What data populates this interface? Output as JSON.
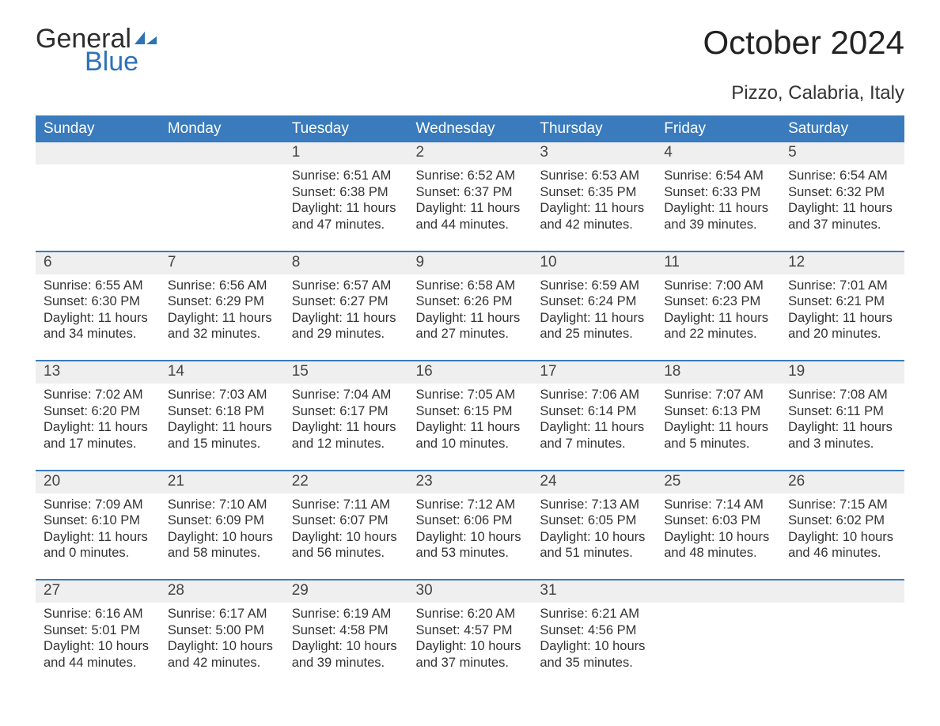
{
  "logo": {
    "text_general": "General",
    "text_blue": "Blue",
    "icon_color": "#2d73b6"
  },
  "title": "October 2024",
  "location": "Pizzo, Calabria, Italy",
  "colors": {
    "header_bg": "#397bbd",
    "header_text": "#ffffff",
    "daynum_bg": "#efefef",
    "border": "#397bbd",
    "body_text": "#333333"
  },
  "fonts": {
    "title_size": 42,
    "location_size": 24,
    "header_size": 19,
    "daynum_size": 19,
    "data_size": 16.5
  },
  "day_names": [
    "Sunday",
    "Monday",
    "Tuesday",
    "Wednesday",
    "Thursday",
    "Friday",
    "Saturday"
  ],
  "weeks": [
    [
      {
        "num": "",
        "sunrise": "",
        "sunset": "",
        "daylight": ""
      },
      {
        "num": "",
        "sunrise": "",
        "sunset": "",
        "daylight": ""
      },
      {
        "num": "1",
        "sunrise": "Sunrise: 6:51 AM",
        "sunset": "Sunset: 6:38 PM",
        "daylight": "Daylight: 11 hours and 47 minutes."
      },
      {
        "num": "2",
        "sunrise": "Sunrise: 6:52 AM",
        "sunset": "Sunset: 6:37 PM",
        "daylight": "Daylight: 11 hours and 44 minutes."
      },
      {
        "num": "3",
        "sunrise": "Sunrise: 6:53 AM",
        "sunset": "Sunset: 6:35 PM",
        "daylight": "Daylight: 11 hours and 42 minutes."
      },
      {
        "num": "4",
        "sunrise": "Sunrise: 6:54 AM",
        "sunset": "Sunset: 6:33 PM",
        "daylight": "Daylight: 11 hours and 39 minutes."
      },
      {
        "num": "5",
        "sunrise": "Sunrise: 6:54 AM",
        "sunset": "Sunset: 6:32 PM",
        "daylight": "Daylight: 11 hours and 37 minutes."
      }
    ],
    [
      {
        "num": "6",
        "sunrise": "Sunrise: 6:55 AM",
        "sunset": "Sunset: 6:30 PM",
        "daylight": "Daylight: 11 hours and 34 minutes."
      },
      {
        "num": "7",
        "sunrise": "Sunrise: 6:56 AM",
        "sunset": "Sunset: 6:29 PM",
        "daylight": "Daylight: 11 hours and 32 minutes."
      },
      {
        "num": "8",
        "sunrise": "Sunrise: 6:57 AM",
        "sunset": "Sunset: 6:27 PM",
        "daylight": "Daylight: 11 hours and 29 minutes."
      },
      {
        "num": "9",
        "sunrise": "Sunrise: 6:58 AM",
        "sunset": "Sunset: 6:26 PM",
        "daylight": "Daylight: 11 hours and 27 minutes."
      },
      {
        "num": "10",
        "sunrise": "Sunrise: 6:59 AM",
        "sunset": "Sunset: 6:24 PM",
        "daylight": "Daylight: 11 hours and 25 minutes."
      },
      {
        "num": "11",
        "sunrise": "Sunrise: 7:00 AM",
        "sunset": "Sunset: 6:23 PM",
        "daylight": "Daylight: 11 hours and 22 minutes."
      },
      {
        "num": "12",
        "sunrise": "Sunrise: 7:01 AM",
        "sunset": "Sunset: 6:21 PM",
        "daylight": "Daylight: 11 hours and 20 minutes."
      }
    ],
    [
      {
        "num": "13",
        "sunrise": "Sunrise: 7:02 AM",
        "sunset": "Sunset: 6:20 PM",
        "daylight": "Daylight: 11 hours and 17 minutes."
      },
      {
        "num": "14",
        "sunrise": "Sunrise: 7:03 AM",
        "sunset": "Sunset: 6:18 PM",
        "daylight": "Daylight: 11 hours and 15 minutes."
      },
      {
        "num": "15",
        "sunrise": "Sunrise: 7:04 AM",
        "sunset": "Sunset: 6:17 PM",
        "daylight": "Daylight: 11 hours and 12 minutes."
      },
      {
        "num": "16",
        "sunrise": "Sunrise: 7:05 AM",
        "sunset": "Sunset: 6:15 PM",
        "daylight": "Daylight: 11 hours and 10 minutes."
      },
      {
        "num": "17",
        "sunrise": "Sunrise: 7:06 AM",
        "sunset": "Sunset: 6:14 PM",
        "daylight": "Daylight: 11 hours and 7 minutes."
      },
      {
        "num": "18",
        "sunrise": "Sunrise: 7:07 AM",
        "sunset": "Sunset: 6:13 PM",
        "daylight": "Daylight: 11 hours and 5 minutes."
      },
      {
        "num": "19",
        "sunrise": "Sunrise: 7:08 AM",
        "sunset": "Sunset: 6:11 PM",
        "daylight": "Daylight: 11 hours and 3 minutes."
      }
    ],
    [
      {
        "num": "20",
        "sunrise": "Sunrise: 7:09 AM",
        "sunset": "Sunset: 6:10 PM",
        "daylight": "Daylight: 11 hours and 0 minutes."
      },
      {
        "num": "21",
        "sunrise": "Sunrise: 7:10 AM",
        "sunset": "Sunset: 6:09 PM",
        "daylight": "Daylight: 10 hours and 58 minutes."
      },
      {
        "num": "22",
        "sunrise": "Sunrise: 7:11 AM",
        "sunset": "Sunset: 6:07 PM",
        "daylight": "Daylight: 10 hours and 56 minutes."
      },
      {
        "num": "23",
        "sunrise": "Sunrise: 7:12 AM",
        "sunset": "Sunset: 6:06 PM",
        "daylight": "Daylight: 10 hours and 53 minutes."
      },
      {
        "num": "24",
        "sunrise": "Sunrise: 7:13 AM",
        "sunset": "Sunset: 6:05 PM",
        "daylight": "Daylight: 10 hours and 51 minutes."
      },
      {
        "num": "25",
        "sunrise": "Sunrise: 7:14 AM",
        "sunset": "Sunset: 6:03 PM",
        "daylight": "Daylight: 10 hours and 48 minutes."
      },
      {
        "num": "26",
        "sunrise": "Sunrise: 7:15 AM",
        "sunset": "Sunset: 6:02 PM",
        "daylight": "Daylight: 10 hours and 46 minutes."
      }
    ],
    [
      {
        "num": "27",
        "sunrise": "Sunrise: 6:16 AM",
        "sunset": "Sunset: 5:01 PM",
        "daylight": "Daylight: 10 hours and 44 minutes."
      },
      {
        "num": "28",
        "sunrise": "Sunrise: 6:17 AM",
        "sunset": "Sunset: 5:00 PM",
        "daylight": "Daylight: 10 hours and 42 minutes."
      },
      {
        "num": "29",
        "sunrise": "Sunrise: 6:19 AM",
        "sunset": "Sunset: 4:58 PM",
        "daylight": "Daylight: 10 hours and 39 minutes."
      },
      {
        "num": "30",
        "sunrise": "Sunrise: 6:20 AM",
        "sunset": "Sunset: 4:57 PM",
        "daylight": "Daylight: 10 hours and 37 minutes."
      },
      {
        "num": "31",
        "sunrise": "Sunrise: 6:21 AM",
        "sunset": "Sunset: 4:56 PM",
        "daylight": "Daylight: 10 hours and 35 minutes."
      },
      {
        "num": "",
        "sunrise": "",
        "sunset": "",
        "daylight": ""
      },
      {
        "num": "",
        "sunrise": "",
        "sunset": "",
        "daylight": ""
      }
    ]
  ]
}
